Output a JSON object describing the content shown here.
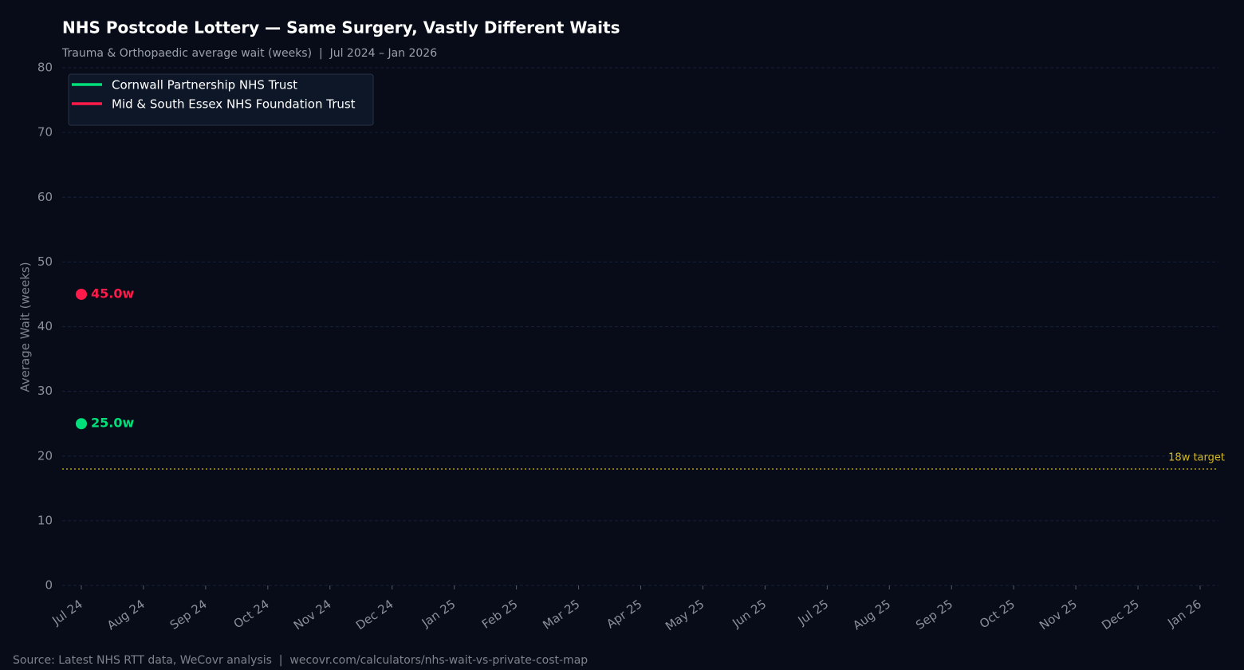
{
  "chart_data": {
    "type": "line",
    "title": "NHS Postcode Lottery — Same Surgery, Vastly Different Waits",
    "subtitle": "Trauma & Orthopaedic average wait (weeks)  |  Jul 2024 – Jan 2026",
    "y_label": "Average Wait (weeks)",
    "source": "Source: Latest NHS RTT data, WeCovr analysis  |  wecovr.com/calculators/nhs-wait-vs-private-cost-map",
    "categories": [
      "Jul 24",
      "Aug 24",
      "Sep 24",
      "Oct 24",
      "Nov 24",
      "Dec 24",
      "Jan 25",
      "Feb 25",
      "Mar 25",
      "Apr 25",
      "May 25",
      "Jun 25",
      "Jul 25",
      "Aug 25",
      "Sep 25",
      "Oct 25",
      "Nov 25",
      "Dec 25",
      "Jan 26"
    ],
    "series": [
      {
        "name": "Cornwall Partnership NHS Trust",
        "color": "#00e07a",
        "values": [
          25,
          null,
          null,
          null,
          null,
          null,
          null,
          null,
          null,
          null,
          null,
          null,
          null,
          null,
          null,
          null,
          null,
          null,
          null
        ],
        "value_labels": [
          "25.0w",
          null,
          null,
          null,
          null,
          null,
          null,
          null,
          null,
          null,
          null,
          null,
          null,
          null,
          null,
          null,
          null,
          null,
          null
        ]
      },
      {
        "name": "Mid & South Essex NHS Foundation Trust",
        "color": "#ff1a4a",
        "values": [
          45,
          null,
          null,
          null,
          null,
          null,
          null,
          null,
          null,
          null,
          null,
          null,
          null,
          null,
          null,
          null,
          null,
          null,
          null
        ],
        "value_labels": [
          "45.0w",
          null,
          null,
          null,
          null,
          null,
          null,
          null,
          null,
          null,
          null,
          null,
          null,
          null,
          null,
          null,
          null,
          null,
          null
        ]
      }
    ],
    "target": {
      "value": 18,
      "label": "18w target",
      "color": "#d4b81f"
    },
    "ylim": [
      0,
      80
    ],
    "yticks": [
      0,
      10,
      20,
      30,
      40,
      50,
      60,
      70,
      80
    ],
    "grid": true,
    "legend": "upper left"
  }
}
